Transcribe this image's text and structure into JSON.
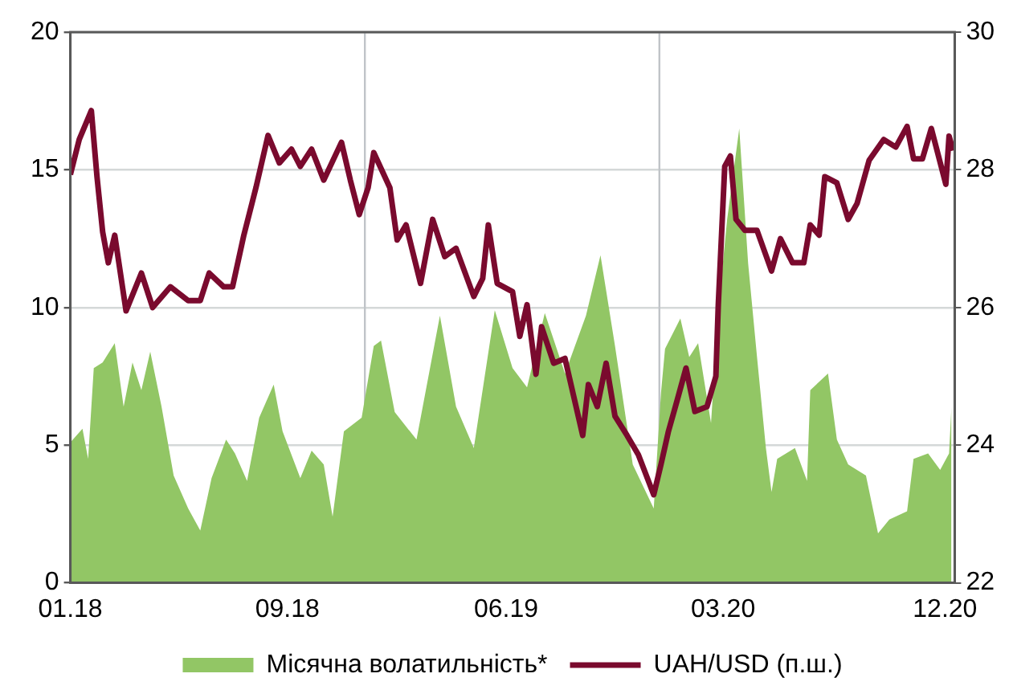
{
  "chart_data": {
    "type": "area",
    "xlim": [
      "2018-01-01",
      "2021-01-01"
    ],
    "xticks": [
      {
        "value": "2018-01-01",
        "label": "01.18"
      },
      {
        "value": "2018-09-27",
        "label": "09.18"
      },
      {
        "value": "2019-06-25",
        "label": "06.19"
      },
      {
        "value": "2020-03-20",
        "label": "03.20"
      },
      {
        "value": "2020-12-20",
        "label": "12.20"
      }
    ],
    "ylim": [
      0,
      20
    ],
    "yticks": [
      0,
      5,
      10,
      15,
      20
    ],
    "y2lim": [
      22,
      30
    ],
    "y2ticks": [
      22,
      24,
      26,
      28,
      30
    ],
    "grid": "y",
    "legend": "bottom",
    "ref_lines": [
      {
        "axis": "x",
        "value": "2019-01-01",
        "color": "#c0c4c8"
      },
      {
        "axis": "x",
        "value": "2020-01-01",
        "color": "#c0c4c8"
      }
    ],
    "series": [
      {
        "name": "Місячна волатильність*",
        "color": "#92c665",
        "x": [
          "2018-01-01",
          "2018-01-16",
          "2018-01-23",
          "2018-01-30",
          "2018-02-10",
          "2018-02-25",
          "2018-03-08",
          "2018-03-19",
          "2018-03-30",
          "2018-04-10",
          "2018-04-24",
          "2018-05-09",
          "2018-05-27",
          "2018-06-11",
          "2018-06-25",
          "2018-07-13",
          "2018-07-24",
          "2018-08-08",
          "2018-08-23",
          "2018-09-10",
          "2018-09-21",
          "2018-10-13",
          "2018-10-27",
          "2018-11-11",
          "2018-11-22",
          "2018-12-06",
          "2018-12-28",
          "2019-01-12",
          "2019-01-21",
          "2019-02-07",
          "2019-03-06",
          "2019-04-04",
          "2019-04-24",
          "2019-05-16",
          "2019-06-11",
          "2019-07-03",
          "2019-07-21",
          "2019-08-12",
          "2019-09-06",
          "2019-10-02",
          "2019-10-20",
          "2019-11-07",
          "2019-11-29",
          "2019-12-25",
          "2020-01-03",
          "2020-01-08",
          "2020-01-27",
          "2020-02-07",
          "2020-02-18",
          "2020-03-05",
          "2020-03-14",
          "2020-03-25",
          "2020-04-09",
          "2020-04-20",
          "2020-05-01",
          "2020-05-12",
          "2020-05-19",
          "2020-05-26",
          "2020-06-17",
          "2020-07-02",
          "2020-07-06",
          "2020-07-28",
          "2020-08-08",
          "2020-08-22",
          "2020-09-13",
          "2020-09-28",
          "2020-10-12",
          "2020-11-03",
          "2020-11-11",
          "2020-11-29",
          "2020-12-14",
          "2020-12-25",
          "2020-12-28"
        ],
        "values": [
          5.1,
          5.6,
          4.5,
          7.8,
          8.0,
          8.7,
          6.4,
          8.0,
          7.0,
          8.4,
          6.4,
          3.9,
          2.7,
          1.9,
          3.8,
          5.2,
          4.7,
          3.7,
          6.0,
          7.2,
          5.5,
          3.8,
          4.8,
          4.3,
          2.4,
          5.5,
          6.0,
          8.6,
          8.8,
          6.2,
          5.2,
          9.7,
          6.4,
          4.9,
          9.9,
          7.8,
          7.1,
          9.8,
          7.6,
          9.7,
          11.9,
          8.6,
          4.3,
          2.7,
          6.9,
          8.5,
          9.6,
          8.2,
          8.7,
          5.8,
          9.9,
          13.2,
          16.5,
          11.6,
          8.2,
          4.9,
          3.3,
          4.5,
          4.9,
          3.7,
          7.0,
          7.6,
          5.2,
          4.3,
          3.9,
          1.8,
          2.3,
          2.6,
          4.5,
          4.7,
          4.1,
          4.7,
          6.4
        ]
      },
      {
        "name": "UAH/USD (п.ш.)",
        "type": "line",
        "axis": "y2",
        "color": "#7a0a2e",
        "x": [
          "2018-01-01",
          "2018-01-12",
          "2018-01-27",
          "2018-02-03",
          "2018-02-10",
          "2018-02-17",
          "2018-02-25",
          "2018-03-11",
          "2018-03-30",
          "2018-04-13",
          "2018-05-05",
          "2018-05-27",
          "2018-06-11",
          "2018-06-22",
          "2018-07-10",
          "2018-07-21",
          "2018-08-04",
          "2018-08-19",
          "2018-09-03",
          "2018-09-17",
          "2018-10-02",
          "2018-10-13",
          "2018-10-27",
          "2018-11-11",
          "2018-12-03",
          "2018-12-14",
          "2018-12-25",
          "2019-01-05",
          "2019-01-12",
          "2019-02-01",
          "2019-02-10",
          "2019-02-21",
          "2019-03-11",
          "2019-03-26",
          "2019-04-10",
          "2019-04-24",
          "2019-05-16",
          "2019-05-27",
          "2019-06-03",
          "2019-06-14",
          "2019-07-03",
          "2019-07-12",
          "2019-07-21",
          "2019-08-01",
          "2019-08-08",
          "2019-08-23",
          "2019-09-06",
          "2019-09-28",
          "2019-10-05",
          "2019-10-16",
          "2019-10-27",
          "2019-11-07",
          "2019-11-22",
          "2019-12-06",
          "2019-12-25",
          "2020-01-03",
          "2020-01-12",
          "2020-01-23",
          "2020-02-03",
          "2020-02-14",
          "2020-02-29",
          "2020-03-11",
          "2020-03-14",
          "2020-03-22",
          "2020-03-29",
          "2020-04-05",
          "2020-04-16",
          "2020-05-01",
          "2020-05-19",
          "2020-05-30",
          "2020-06-14",
          "2020-06-28",
          "2020-07-06",
          "2020-07-17",
          "2020-07-24",
          "2020-08-08",
          "2020-08-22",
          "2020-09-02",
          "2020-09-17",
          "2020-10-05",
          "2020-10-20",
          "2020-11-03",
          "2020-11-11",
          "2020-11-22",
          "2020-12-03",
          "2020-12-21",
          "2020-12-25",
          "2020-12-30"
        ],
        "values": [
          27.93,
          28.44,
          28.86,
          27.9,
          27.1,
          26.65,
          27.05,
          25.95,
          26.5,
          26.0,
          26.3,
          26.1,
          26.1,
          26.5,
          26.3,
          26.3,
          27.05,
          27.74,
          28.5,
          28.1,
          28.3,
          28.05,
          28.3,
          27.85,
          28.4,
          27.85,
          27.35,
          27.74,
          28.25,
          27.74,
          26.98,
          27.2,
          26.35,
          27.28,
          26.74,
          26.86,
          26.16,
          26.42,
          27.2,
          26.35,
          26.23,
          25.58,
          26.04,
          25.03,
          25.72,
          25.19,
          25.26,
          24.14,
          24.88,
          24.56,
          25.19,
          24.42,
          24.14,
          23.86,
          23.28,
          23.72,
          24.19,
          24.65,
          25.12,
          24.49,
          24.56,
          25.0,
          26.04,
          28.05,
          28.2,
          27.28,
          27.12,
          27.12,
          26.53,
          27.0,
          26.65,
          26.65,
          27.2,
          27.05,
          27.9,
          27.81,
          27.28,
          27.51,
          28.14,
          28.44,
          28.33,
          28.63,
          28.16,
          28.16,
          28.6,
          27.79,
          28.49,
          28.28
        ]
      }
    ]
  }
}
